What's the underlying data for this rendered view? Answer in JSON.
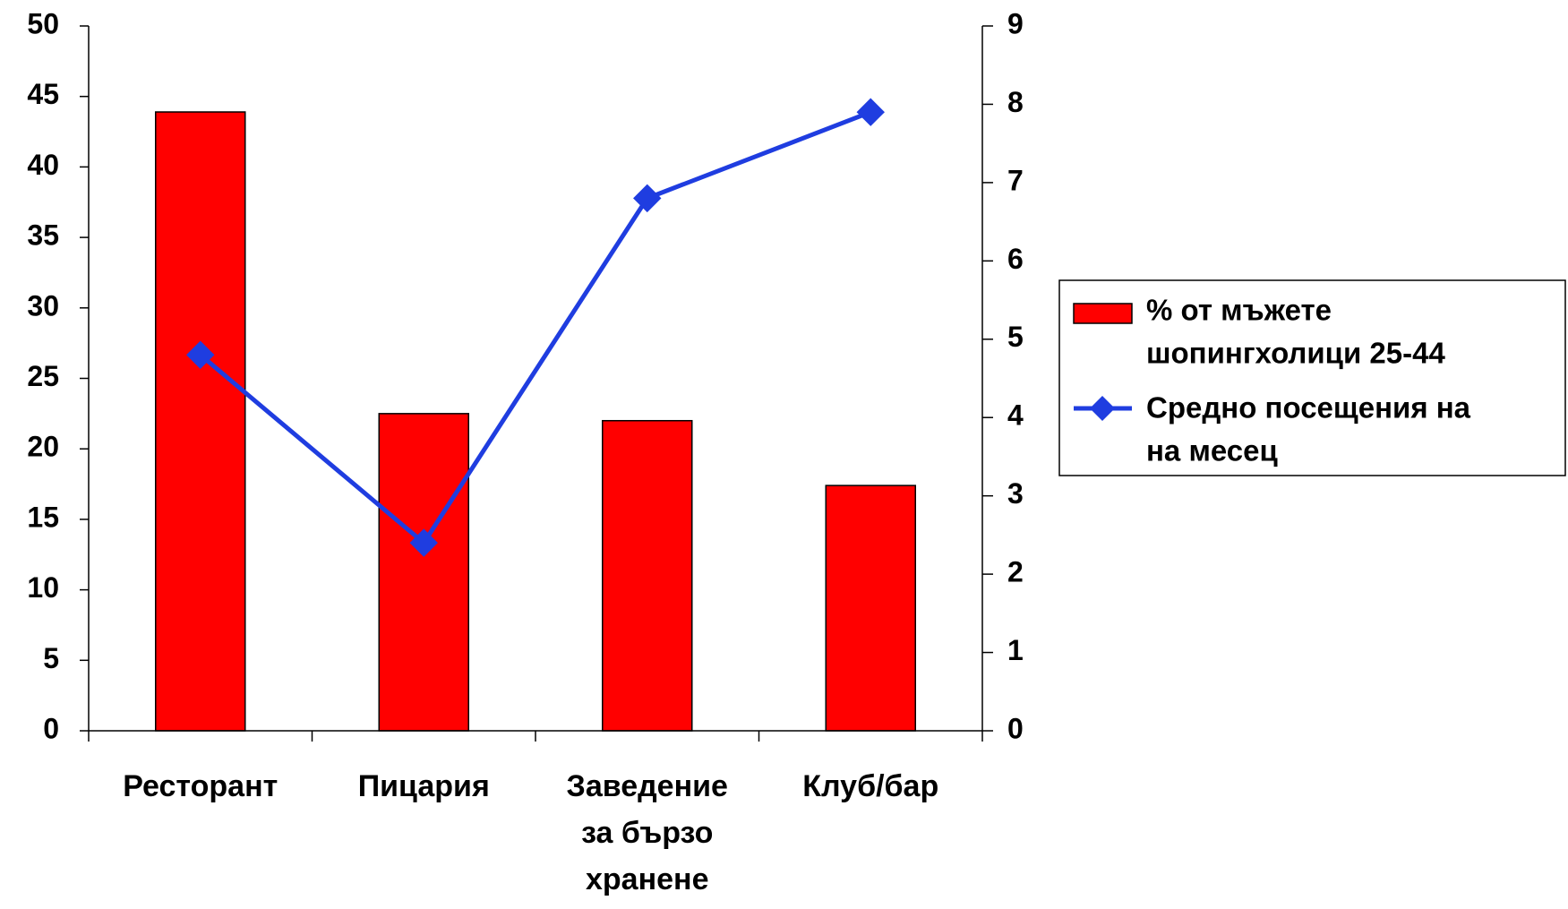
{
  "chart_data": {
    "type": "bar+line",
    "title": "",
    "categories": [
      "Ресторант",
      "Пицария",
      "Заведение за бързо хранене",
      "Клуб/бар"
    ],
    "category_lines": [
      [
        "Ресторант"
      ],
      [
        "Пицария"
      ],
      [
        "Заведение",
        "за бързо",
        "хранене"
      ],
      [
        "Клуб/бар"
      ]
    ],
    "y_left": {
      "ylim": [
        0,
        50
      ],
      "ticks": [
        0,
        5,
        10,
        15,
        20,
        25,
        30,
        35,
        40,
        45,
        50
      ]
    },
    "y_right": {
      "ylim": [
        0,
        9
      ],
      "ticks": [
        0,
        1,
        2,
        3,
        4,
        5,
        6,
        7,
        8,
        9
      ]
    },
    "grid": false,
    "legend_position": "right",
    "series": [
      {
        "name": "% от мъжете шопингхолици 25-44",
        "name_lines": [
          "% от мъжете",
          "шопингхолици 25-44"
        ],
        "type": "bar",
        "axis": "left",
        "color": "#ff0000",
        "values": [
          43.9,
          22.5,
          22.0,
          17.4
        ]
      },
      {
        "name": "Средно посещения на на месец",
        "name_lines": [
          "Средно посещения на",
          "на месец"
        ],
        "type": "line",
        "axis": "right",
        "color": "#1f3de0",
        "marker": "diamond",
        "values": [
          4.8,
          2.4,
          6.8,
          7.9
        ]
      }
    ]
  }
}
